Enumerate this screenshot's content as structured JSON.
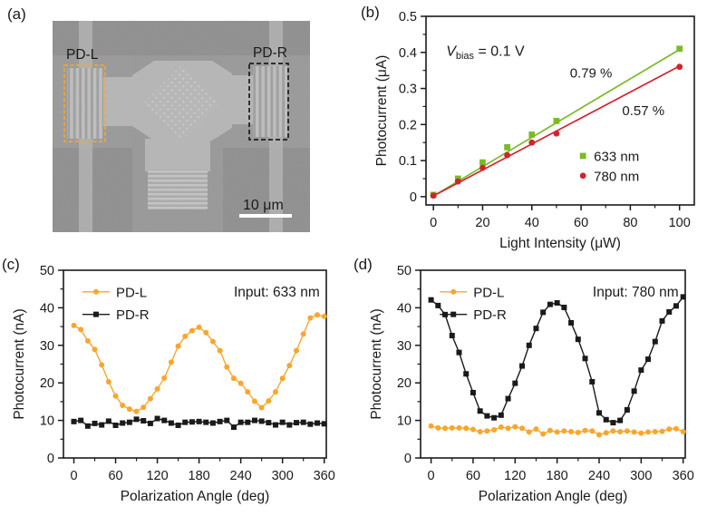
{
  "figure": {
    "panel_labels": {
      "a": "(a)",
      "b": "(b)",
      "c": "(c)",
      "d": "(d)"
    }
  },
  "sem": {
    "label_left": "PD-L",
    "label_right": "PD-R",
    "scale_bar": "10 μm",
    "colors": {
      "label_left": "#f9a62c",
      "label_right": "#1a1a1a",
      "scale_bar": "#ffffff"
    }
  },
  "chart_data": [
    {
      "id": "chart-b",
      "type": "scatter",
      "xlabel": "Light Intensity (μW)",
      "ylabel": "Photocurrent (μA)",
      "xlim": [
        -3,
        106
      ],
      "ylim": [
        -0.023,
        0.5
      ],
      "grid": false,
      "xticks": {
        "values": [
          0,
          20,
          40,
          60,
          80,
          100
        ],
        "labels": [
          "0",
          "20",
          "40",
          "60",
          "80",
          "100"
        ]
      },
      "xminors": [
        10,
        30,
        50,
        70,
        90
      ],
      "yticks": {
        "values": [
          0,
          0.1,
          0.2,
          0.3,
          0.4,
          0.5
        ],
        "labels": [
          "0",
          "0.1",
          "0.2",
          "0.3",
          "0.4",
          "0.5"
        ]
      },
      "yminors": [
        0.05,
        0.15,
        0.25,
        0.35,
        0.45
      ],
      "marker_size": 3.4,
      "vbias": {
        "lead": "V",
        "sub": "bias",
        "rest": " = 0.1 V",
        "fx": 0.075,
        "fy": 0.185
      },
      "slope_labels": [
        {
          "text": "0.79 %",
          "color": "#7cba27",
          "fx": 0.615,
          "fy": 0.3
        },
        {
          "text": "0.57 %",
          "color": "#d2232c",
          "fx": 0.81,
          "fy": 0.5
        }
      ],
      "series": [
        {
          "name": "633 nm",
          "color": "#7cba27",
          "marker": "square",
          "x": [
            0,
            10,
            20,
            30,
            40,
            50,
            100
          ],
          "y": [
            0.005,
            0.05,
            0.095,
            0.137,
            0.172,
            0.21,
            0.41
          ],
          "fit": {
            "x1": 0,
            "y1": 0.002,
            "x2": 100,
            "y2": 0.408
          }
        },
        {
          "name": "780 nm",
          "color": "#d2232c",
          "marker": "circle",
          "x": [
            0,
            10,
            20,
            30,
            40,
            50,
            100
          ],
          "y": [
            0.003,
            0.042,
            0.08,
            0.115,
            0.15,
            0.175,
            0.36
          ],
          "fit": {
            "x1": 0,
            "y1": 0.002,
            "x2": 100,
            "y2": 0.362
          }
        }
      ],
      "legend": {
        "fx": 0.585,
        "rows": [
          0.74,
          0.845
        ],
        "line": false,
        "text_dx": 12,
        "position": "inside-bottom-right"
      }
    },
    {
      "id": "chart-c",
      "type": "line",
      "xlabel": "Polarization Angle (deg)",
      "ylabel": "Photocurrent (nA)",
      "xlim": [
        -15,
        363
      ],
      "ylim": [
        0,
        50
      ],
      "grid": false,
      "xticks": {
        "values": [
          0,
          60,
          120,
          180,
          240,
          300,
          360
        ],
        "labels": [
          "0",
          "60",
          "120",
          "180",
          "240",
          "300",
          "360"
        ]
      },
      "xminors": [
        30,
        90,
        150,
        210,
        270,
        330
      ],
      "yticks": {
        "values": [
          0,
          10,
          20,
          30,
          40,
          50
        ],
        "labels": [
          "0",
          "10",
          "20",
          "30",
          "40",
          "50"
        ]
      },
      "yminors": [
        5,
        15,
        25,
        35,
        45
      ],
      "marker_size": 3.0,
      "note": {
        "text": "Input: 633 nm",
        "fx": 0.975,
        "fy": 0.115
      },
      "x": [
        0,
        10,
        20,
        30,
        40,
        50,
        60,
        70,
        80,
        90,
        100,
        110,
        120,
        130,
        140,
        150,
        160,
        170,
        180,
        190,
        200,
        210,
        220,
        230,
        240,
        250,
        260,
        270,
        280,
        290,
        300,
        310,
        320,
        330,
        340,
        350,
        360
      ],
      "series": [
        {
          "name": "PD-L",
          "color": "#f9a62c",
          "marker": "circle",
          "connect": true,
          "y": [
            35.3,
            34.2,
            31.2,
            28.9,
            24.8,
            20.3,
            16.5,
            14.0,
            13.0,
            12.4,
            13.5,
            15.8,
            18.4,
            21.3,
            25.5,
            29.8,
            32.4,
            33.9,
            34.8,
            33.4,
            31.0,
            28.6,
            24.2,
            21.2,
            19.9,
            17.6,
            15.1,
            13.4,
            15.2,
            17.6,
            21.2,
            24.6,
            28.6,
            33.0,
            37.3,
            38.1,
            37.7
          ]
        },
        {
          "name": "PD-R",
          "color": "#1a1a1a",
          "marker": "square",
          "connect": true,
          "y": [
            9.7,
            10.0,
            8.5,
            9.2,
            8.8,
            9.8,
            8.7,
            9.3,
            9.5,
            10.3,
            9.9,
            9.2,
            10.5,
            10.0,
            9.3,
            8.7,
            9.5,
            9.6,
            9.7,
            9.5,
            9.3,
            9.7,
            10.0,
            8.2,
            9.5,
            9.5,
            10.0,
            9.8,
            9.4,
            8.8,
            9.5,
            8.8,
            9.4,
            9.5,
            9.0,
            9.3,
            9.1
          ]
        }
      ],
      "legend": {
        "fx": 0.124,
        "rows": [
          0.115,
          0.235
        ],
        "line": true,
        "text_dx": 22,
        "position": "inside-top-left"
      }
    },
    {
      "id": "chart-d",
      "type": "line",
      "xlabel": "Polarization Angle (deg)",
      "ylabel": "Photocurrent (nA)",
      "xlim": [
        -15,
        363
      ],
      "ylim": [
        0,
        50
      ],
      "grid": false,
      "xticks": {
        "values": [
          0,
          60,
          120,
          180,
          240,
          300,
          360
        ],
        "labels": [
          "0",
          "60",
          "120",
          "180",
          "240",
          "300",
          "360"
        ]
      },
      "xminors": [
        30,
        90,
        150,
        210,
        270,
        330
      ],
      "yticks": {
        "values": [
          0,
          10,
          20,
          30,
          40,
          50
        ],
        "labels": [
          "0",
          "10",
          "20",
          "30",
          "40",
          "50"
        ]
      },
      "yminors": [
        5,
        15,
        25,
        35,
        45
      ],
      "marker_size": 3.0,
      "note": {
        "text": "Input: 780 nm",
        "fx": 0.975,
        "fy": 0.115
      },
      "x": [
        0,
        10,
        20,
        30,
        40,
        50,
        60,
        70,
        80,
        90,
        100,
        110,
        120,
        130,
        140,
        150,
        160,
        170,
        180,
        190,
        200,
        210,
        220,
        230,
        240,
        250,
        260,
        270,
        280,
        290,
        300,
        310,
        320,
        330,
        340,
        350,
        360
      ],
      "series": [
        {
          "name": "PD-L",
          "color": "#f9a62c",
          "marker": "circle",
          "connect": true,
          "y": [
            8.5,
            8.0,
            7.9,
            8.0,
            8.0,
            7.9,
            7.6,
            7.0,
            7.2,
            7.5,
            8.2,
            7.9,
            8.3,
            7.9,
            6.9,
            7.7,
            6.4,
            7.3,
            6.9,
            7.2,
            7.0,
            6.8,
            7.3,
            7.2,
            6.2,
            6.7,
            7.2,
            7.0,
            7.2,
            6.9,
            6.6,
            6.9,
            7.0,
            7.1,
            7.7,
            7.8,
            7.0
          ]
        },
        {
          "name": "PD-R",
          "color": "#1a1a1a",
          "marker": "square",
          "connect": true,
          "y": [
            42.1,
            40.6,
            38.2,
            32.6,
            28.1,
            22.4,
            17.4,
            12.5,
            11.2,
            10.7,
            11.4,
            15.8,
            19.9,
            24.5,
            30.0,
            34.5,
            38.8,
            40.9,
            41.3,
            40.1,
            36.0,
            31.6,
            26.5,
            20.3,
            12.0,
            10.2,
            9.4,
            10.0,
            12.8,
            17.8,
            23.4,
            26.3,
            31.0,
            36.5,
            38.9,
            40.5,
            42.9
          ]
        }
      ],
      "legend": {
        "fx": 0.124,
        "rows": [
          0.115,
          0.235
        ],
        "line": true,
        "text_dx": 22,
        "position": "inside-top-left"
      }
    }
  ]
}
